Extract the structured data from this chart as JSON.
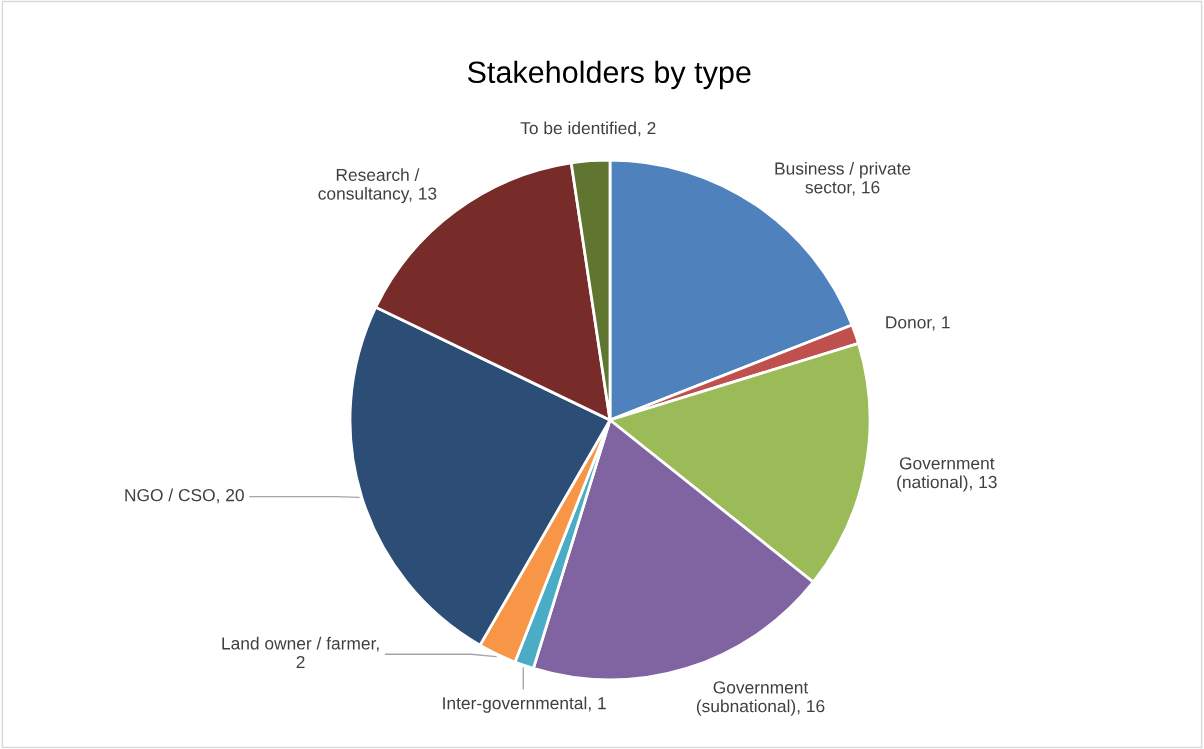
{
  "chart_data": {
    "type": "pie",
    "title": "Stakeholders by type",
    "categories": [
      "Business / private sector",
      "Donor",
      "Government (national)",
      "Government (subnational)",
      "Inter-governmental",
      "Land owner / farmer",
      "NGO / CSO",
      "Research / consultancy",
      "To be identified"
    ],
    "values": [
      16,
      1,
      13,
      16,
      1,
      2,
      20,
      13,
      2
    ],
    "colors": [
      "#4f81bd",
      "#c0504d",
      "#9bbb59",
      "#8064a2",
      "#4bacc6",
      "#f79646",
      "#2c4d75",
      "#772c2a",
      "#5f7530"
    ],
    "value_labels": [
      ", 16",
      ", 1",
      ", 13",
      ", 16",
      ", 1",
      ", 2",
      ", 20",
      ", 13",
      ", 2"
    ]
  }
}
